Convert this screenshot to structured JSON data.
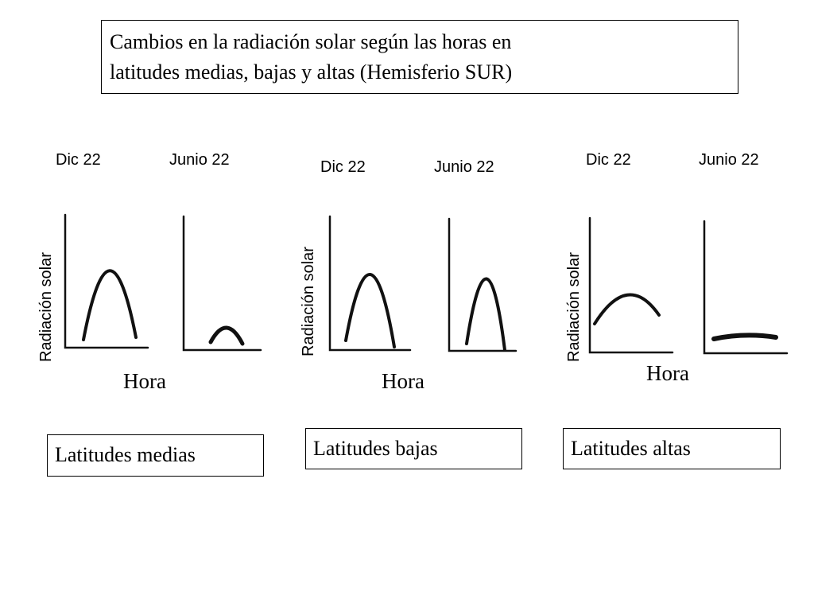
{
  "title": {
    "line1": "Cambios en la radiación solar según las horas en",
    "line2": "latitudes medias, bajas y altas (Hemisferio SUR)"
  },
  "groups": [
    {
      "dec_label": "Dic 22",
      "jun_label": "Junio 22",
      "ylabel": "Radiación solar",
      "xlabel": "Hora",
      "zone": "Latitudes medias",
      "dec_curve": "high-arch",
      "jun_curve": "low-arch"
    },
    {
      "dec_label": "Dic 22",
      "jun_label": "Junio 22",
      "ylabel": "Radiación solar",
      "xlabel": "Hora",
      "zone": "Latitudes bajas",
      "dec_curve": "high-arch",
      "jun_curve": "high-arch"
    },
    {
      "dec_label": "Dic 22",
      "jun_label": "Junio 22",
      "ylabel": "Radiación solar",
      "xlabel": "Hora",
      "zone": "Latitudes altas",
      "dec_curve": "low-wide-arch",
      "jun_curve": "flat-line"
    }
  ]
}
